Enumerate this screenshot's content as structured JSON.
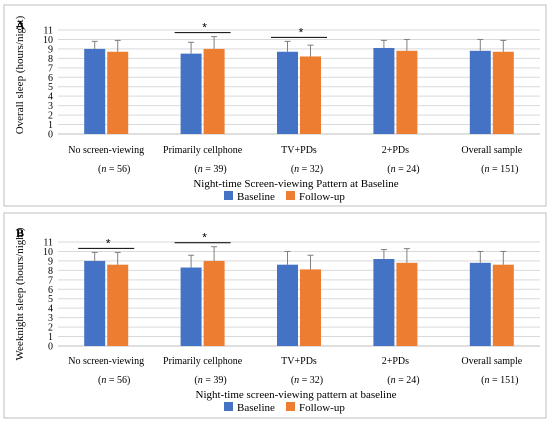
{
  "colors": {
    "baseline": "#4472C4",
    "followup": "#ED7D31",
    "grid": "#d9d9d9",
    "border": "#bfbfbf"
  },
  "chart_data": [
    {
      "type": "bar",
      "panel_label": "A",
      "categories": [
        "No screen-viewing",
        "Primarily cellphone",
        "TV+PDs",
        "2+PDs",
        "Overall sample"
      ],
      "n_labels": [
        "56",
        "39",
        "32",
        "24",
        "151"
      ],
      "n_prefix": "n",
      "series": [
        {
          "name": "Baseline",
          "values": [
            9.0,
            8.5,
            8.7,
            9.1,
            8.8
          ],
          "errors": [
            0.8,
            1.2,
            1.1,
            0.8,
            1.2
          ]
        },
        {
          "name": "Follow-up",
          "values": [
            8.7,
            9.0,
            8.2,
            8.8,
            8.7
          ],
          "errors": [
            1.2,
            1.3,
            1.2,
            1.2,
            1.2
          ]
        }
      ],
      "significance": [
        1,
        2
      ],
      "significance_symbol": "*",
      "ylabel": "Overall sleep (hours/night)",
      "xlabel": "Night-time Screen-viewing Pattern at Baseline",
      "ylim": [
        0,
        11
      ],
      "yticks": [
        0,
        1,
        2,
        3,
        4,
        5,
        6,
        7,
        8,
        9,
        10,
        11
      ],
      "grid": true,
      "legend_position": "bottom"
    },
    {
      "type": "bar",
      "panel_label": "B",
      "categories": [
        "No screen-viewing",
        "Primarily cellphone",
        "TV+PDs",
        "2+PDs",
        "Overall sample"
      ],
      "n_labels": [
        "56",
        "39",
        "32",
        "24",
        "151"
      ],
      "n_prefix": "n",
      "series": [
        {
          "name": "Baseline",
          "values": [
            9.0,
            8.3,
            8.6,
            9.2,
            8.8
          ],
          "errors": [
            0.9,
            1.3,
            1.4,
            1.0,
            1.2
          ]
        },
        {
          "name": "Follow-up",
          "values": [
            8.6,
            9.0,
            8.1,
            8.8,
            8.6
          ],
          "errors": [
            1.3,
            1.5,
            1.5,
            1.5,
            1.4
          ]
        }
      ],
      "significance": [
        0,
        1
      ],
      "significance_symbol": "*",
      "ylabel": "Weeknight sleep (hours/night)",
      "xlabel": "Night-time screen-viewing pattern at baseline",
      "ylim": [
        0,
        11
      ],
      "yticks": [
        0,
        1,
        2,
        3,
        4,
        5,
        6,
        7,
        8,
        9,
        10,
        11
      ],
      "grid": true,
      "legend_position": "bottom"
    }
  ]
}
